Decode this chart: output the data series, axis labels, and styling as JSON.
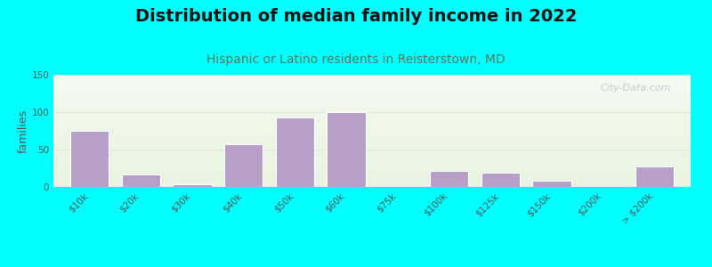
{
  "title": "Distribution of median family income in 2022",
  "subtitle": "Hispanic or Latino residents in Reisterstown, MD",
  "ylabel": "families",
  "categories": [
    "$10k",
    "$20k",
    "$30k",
    "$40k",
    "$50k",
    "$60k",
    "$75k",
    "$100k",
    "$125k",
    "$150k",
    "$200k",
    "> $200k"
  ],
  "values": [
    75,
    17,
    4,
    57,
    93,
    100,
    0,
    22,
    19,
    8,
    0,
    27
  ],
  "bar_color": "#b89fc8",
  "background_color": "#00ffff",
  "ylim": [
    0,
    150
  ],
  "yticks": [
    0,
    50,
    100,
    150
  ],
  "bar_width": 0.75,
  "title_fontsize": 14,
  "subtitle_fontsize": 10,
  "ylabel_fontsize": 9,
  "tick_fontsize": 7.5,
  "watermark": "City-Data.com",
  "grad_top": "#f5faf0",
  "grad_bottom": "#e8f4e0",
  "subtitle_color": "#5a7a5a",
  "title_color": "#111111",
  "tick_color": "#555555",
  "grid_color": "#e0e8d8"
}
